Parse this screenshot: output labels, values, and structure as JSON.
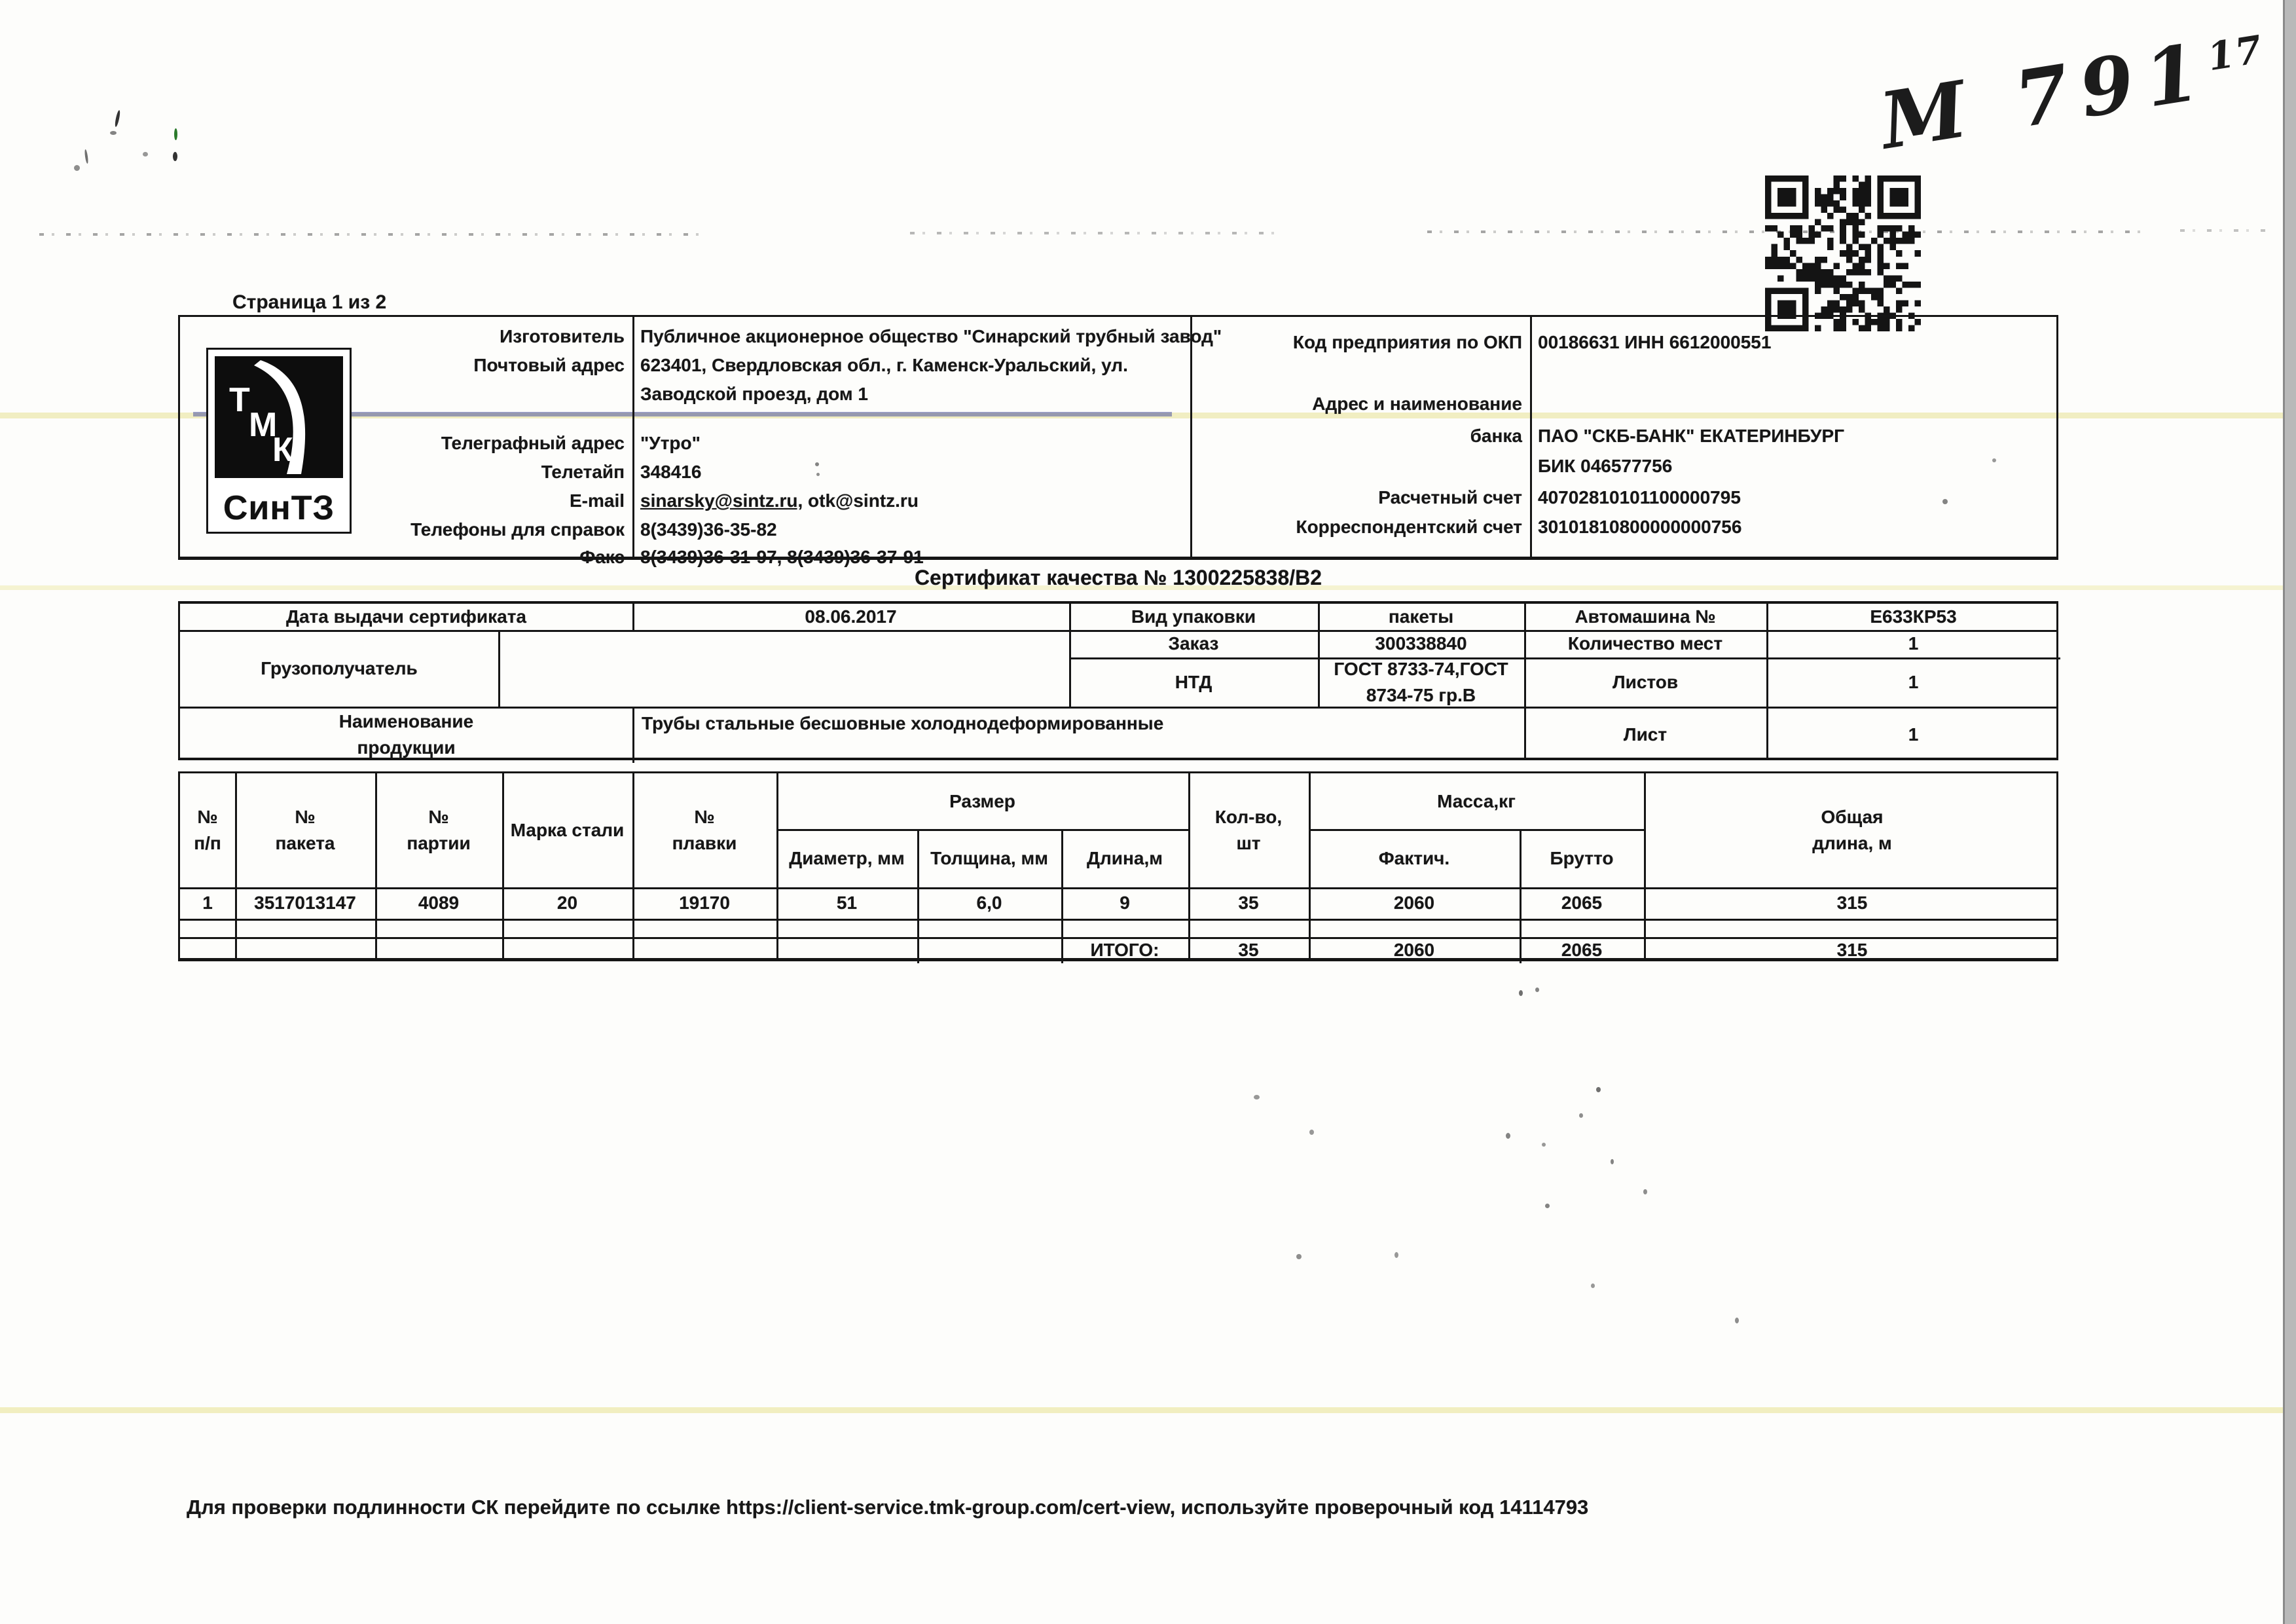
{
  "page": {
    "indicator": "Страница 1 из 2",
    "handwritten_note": "М 791",
    "handwritten_sup": "17"
  },
  "header": {
    "logo": {
      "t": "Т",
      "m": "М",
      "k": "К",
      "name": "СинТЗ"
    },
    "left": [
      {
        "label": "Изготовитель",
        "value": "Публичное акционерное общество \"Синарский трубный завод\""
      },
      {
        "label": "Почтовый адрес",
        "value": "623401, Свердловская обл., г. Каменск-Уральский, ул. Заводской проезд, дом 1"
      },
      {
        "label": "Телеграфный адрес",
        "value": "\"Утро\""
      },
      {
        "label": "Телетайп",
        "value": "348416"
      },
      {
        "label": "E-mail",
        "value_link": "sinarsky@sintz.ru,",
        "value_rest": " otk@sintz.ru"
      },
      {
        "label": "Телефоны для справок",
        "value": "8(3439)36-35-82"
      },
      {
        "label": "Факс",
        "value": "8(3439)36-31-97, 8(3439)36-37-91"
      }
    ],
    "right": [
      {
        "label": "Код предприятия по ОКП",
        "value": "00186631 ИНН 6612000551"
      },
      {
        "label": "Адрес и наименование",
        "label2": "банка",
        "value": "ПАО \"СКБ-БАНК\" ЕКАТЕРИНБУРГ",
        "value2": "БИК 046577756"
      },
      {
        "label": "Расчетный счет",
        "value": "40702810101100000795"
      },
      {
        "label": "Корреспондентский счет",
        "value": "30101810800000000756"
      }
    ]
  },
  "certificate_title": "Сертификат качества №  1300225838/В2",
  "info_table": {
    "date_label": "Дата выдачи сертификата",
    "date_value": "08.06.2017",
    "packing_label": "Вид упаковки",
    "packing_value": "пакеты",
    "truck_label": "Автомашина №",
    "truck_value": "Е633КР53",
    "consignee_label": "Грузополучатель",
    "order_label": "Заказ",
    "order_value": "300338840",
    "places_label": "Количество мест",
    "places_value": "1",
    "ntd_label": "НТД",
    "ntd_value": "ГОСТ 8733-74,ГОСТ 8734-75 гр.В",
    "sheets_label": "Листов",
    "sheets_value": "1",
    "product_label": "Наименование продукции",
    "product_value": "Трубы стальные бесшовные холоднодеформированные",
    "sheet_label": "Лист",
    "sheet_value": "1"
  },
  "main_table": {
    "headers": {
      "num": "№ п/п",
      "package": "№ пакета",
      "batch": "№ партии",
      "steel": "Марка стали",
      "heat": "№ плавки",
      "size_group": "Размер",
      "diameter": "Диаметр, мм",
      "thickness": "Толщина, мм",
      "length": "Длина,м",
      "qty": "Кол-во, шт",
      "mass_group": "Масса,кг",
      "mass_fact": "Фактич.",
      "mass_gross": "Брутто",
      "total_length": "Общая длина, м"
    },
    "rows": [
      [
        "1",
        "3517013147",
        "4089",
        "20",
        "19170",
        "51",
        "6,0",
        "9",
        "35",
        "2060",
        "2065",
        "315"
      ]
    ],
    "total_label": "ИТОГО:",
    "totals": {
      "qty": "35",
      "fact": "2060",
      "gross": "2065",
      "length": "315"
    }
  },
  "footer": {
    "verification": "Для проверки подлинности СК перейдите по ссылке https://client-service.tmk-group.com/cert-view, используйте проверочный код 14114793"
  },
  "icons": {
    "qr": "qr-code",
    "logo": "tmk-logo"
  }
}
